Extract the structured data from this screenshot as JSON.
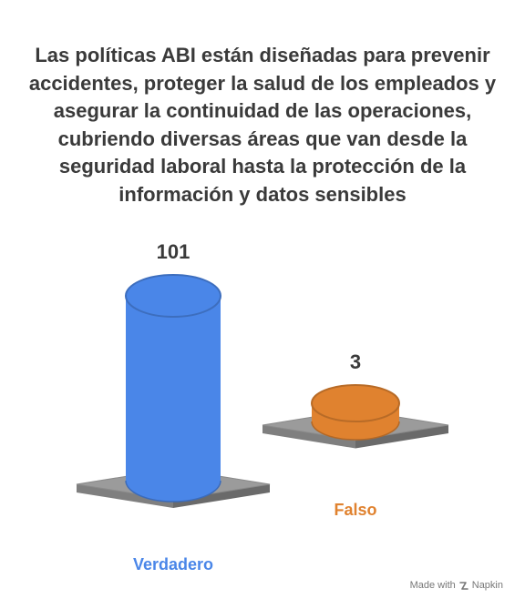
{
  "title": "Las políticas ABI están diseñadas para prevenir accidentes, proteger la salud de los empleados y asegurar la continuidad de las operaciones, cubriendo diversas áreas que van desde la seguridad laboral hasta la protección de la información y datos sensibles",
  "chart_data": {
    "type": "bar",
    "categories": [
      "Verdadero",
      "Falso"
    ],
    "values": [
      101,
      3
    ],
    "colors": [
      "#4a86e8",
      "#e0822f"
    ],
    "title": "Las políticas ABI están diseñadas para prevenir accidentes, proteger la salud de los empleados y asegurar la continuidad de las operaciones, cubriendo diversas áreas que van desde la seguridad laboral hasta la protección de la información y datos sensibles",
    "xlabel": "",
    "ylabel": "",
    "grid": false,
    "legend": "none"
  },
  "watermark": {
    "prefix": "Made with",
    "brand": "Napkin",
    "icon": "napkin-logo-icon"
  }
}
